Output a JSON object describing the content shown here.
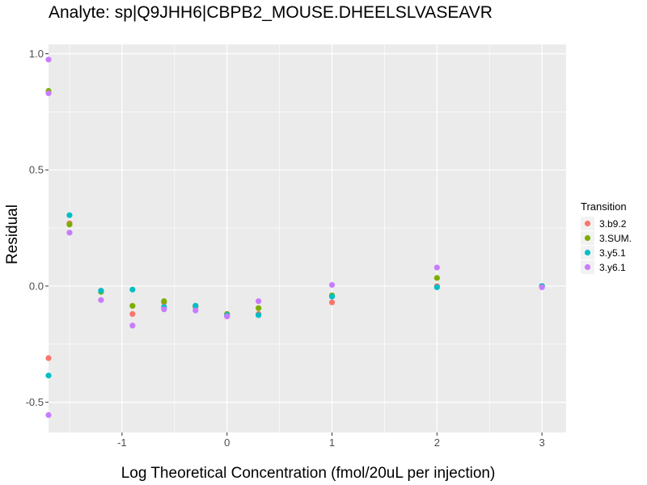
{
  "chart_data": {
    "type": "scatter",
    "title": "Analyte: sp|Q9JHH6|CBPB2_MOUSE.DHEELSLVASEAVR",
    "xlabel": "Log Theoretical Concentration (fmol/20uL per injection)",
    "ylabel": "Residual",
    "xlim": [
      -1.7,
      3.23
    ],
    "ylim": [
      -0.63,
      1.04
    ],
    "x_ticks": [
      -1,
      0,
      1,
      2,
      3
    ],
    "x_tick_labels": [
      "-1",
      "0",
      "1",
      "2",
      "3"
    ],
    "y_ticks": [
      -0.5,
      0.0,
      0.5,
      1.0
    ],
    "y_tick_labels": [
      "-0.5",
      "0.0",
      "0.5",
      "1.0"
    ],
    "grid": true,
    "legend": {
      "title": "Transition",
      "position": "right"
    },
    "series": [
      {
        "name": "3.b9.2",
        "color": "#F8766D",
        "points": [
          {
            "x": -1.7,
            "y": -0.31
          },
          {
            "x": -1.5,
            "y": 0.27
          },
          {
            "x": -1.2,
            "y": -0.02
          },
          {
            "x": -0.9,
            "y": -0.12
          },
          {
            "x": -0.6,
            "y": -0.07
          },
          {
            "x": -0.3,
            "y": -0.09
          },
          {
            "x": 0.0,
            "y": -0.13
          },
          {
            "x": 0.3,
            "y": -0.12
          },
          {
            "x": 1.0,
            "y": -0.07
          },
          {
            "x": 2.0,
            "y": 0.0
          },
          {
            "x": 3.0,
            "y": 0.0
          }
        ]
      },
      {
        "name": "3.SUM.",
        "color": "#7CAE00",
        "points": [
          {
            "x": -1.7,
            "y": 0.84
          },
          {
            "x": -1.5,
            "y": 0.265
          },
          {
            "x": -1.2,
            "y": -0.025
          },
          {
            "x": -0.9,
            "y": -0.085
          },
          {
            "x": -0.6,
            "y": -0.065
          },
          {
            "x": -0.3,
            "y": -0.085
          },
          {
            "x": 0.0,
            "y": -0.12
          },
          {
            "x": 0.3,
            "y": -0.095
          },
          {
            "x": 1.0,
            "y": -0.04
          },
          {
            "x": 2.0,
            "y": 0.035
          },
          {
            "x": 3.0,
            "y": 0.0
          }
        ]
      },
      {
        "name": "3.y5.1",
        "color": "#00BFC4",
        "points": [
          {
            "x": -1.7,
            "y": -0.385
          },
          {
            "x": -1.5,
            "y": 0.305
          },
          {
            "x": -1.2,
            "y": -0.02
          },
          {
            "x": -0.9,
            "y": -0.015
          },
          {
            "x": -0.6,
            "y": -0.09
          },
          {
            "x": -0.3,
            "y": -0.085
          },
          {
            "x": 0.0,
            "y": -0.125
          },
          {
            "x": 0.3,
            "y": -0.125
          },
          {
            "x": 1.0,
            "y": -0.045
          },
          {
            "x": 2.0,
            "y": -0.005
          },
          {
            "x": 3.0,
            "y": 0.0
          }
        ]
      },
      {
        "name": "3.y6.1",
        "color": "#C77CFF",
        "points": [
          {
            "x": -1.7,
            "y": 0.975
          },
          {
            "x": -1.7,
            "y": 0.83
          },
          {
            "x": -1.7,
            "y": -0.555
          },
          {
            "x": -1.5,
            "y": 0.23
          },
          {
            "x": -1.2,
            "y": -0.06
          },
          {
            "x": -0.9,
            "y": -0.17
          },
          {
            "x": -0.6,
            "y": -0.1
          },
          {
            "x": -0.3,
            "y": -0.105
          },
          {
            "x": 0.0,
            "y": -0.13
          },
          {
            "x": 0.3,
            "y": -0.065
          },
          {
            "x": 1.0,
            "y": 0.005
          },
          {
            "x": 2.0,
            "y": 0.08
          },
          {
            "x": 3.0,
            "y": -0.005
          }
        ]
      }
    ]
  },
  "style": {
    "panel_background": "#EBEBEB",
    "grid_major": "#FFFFFF",
    "tick_color": "#333333"
  }
}
